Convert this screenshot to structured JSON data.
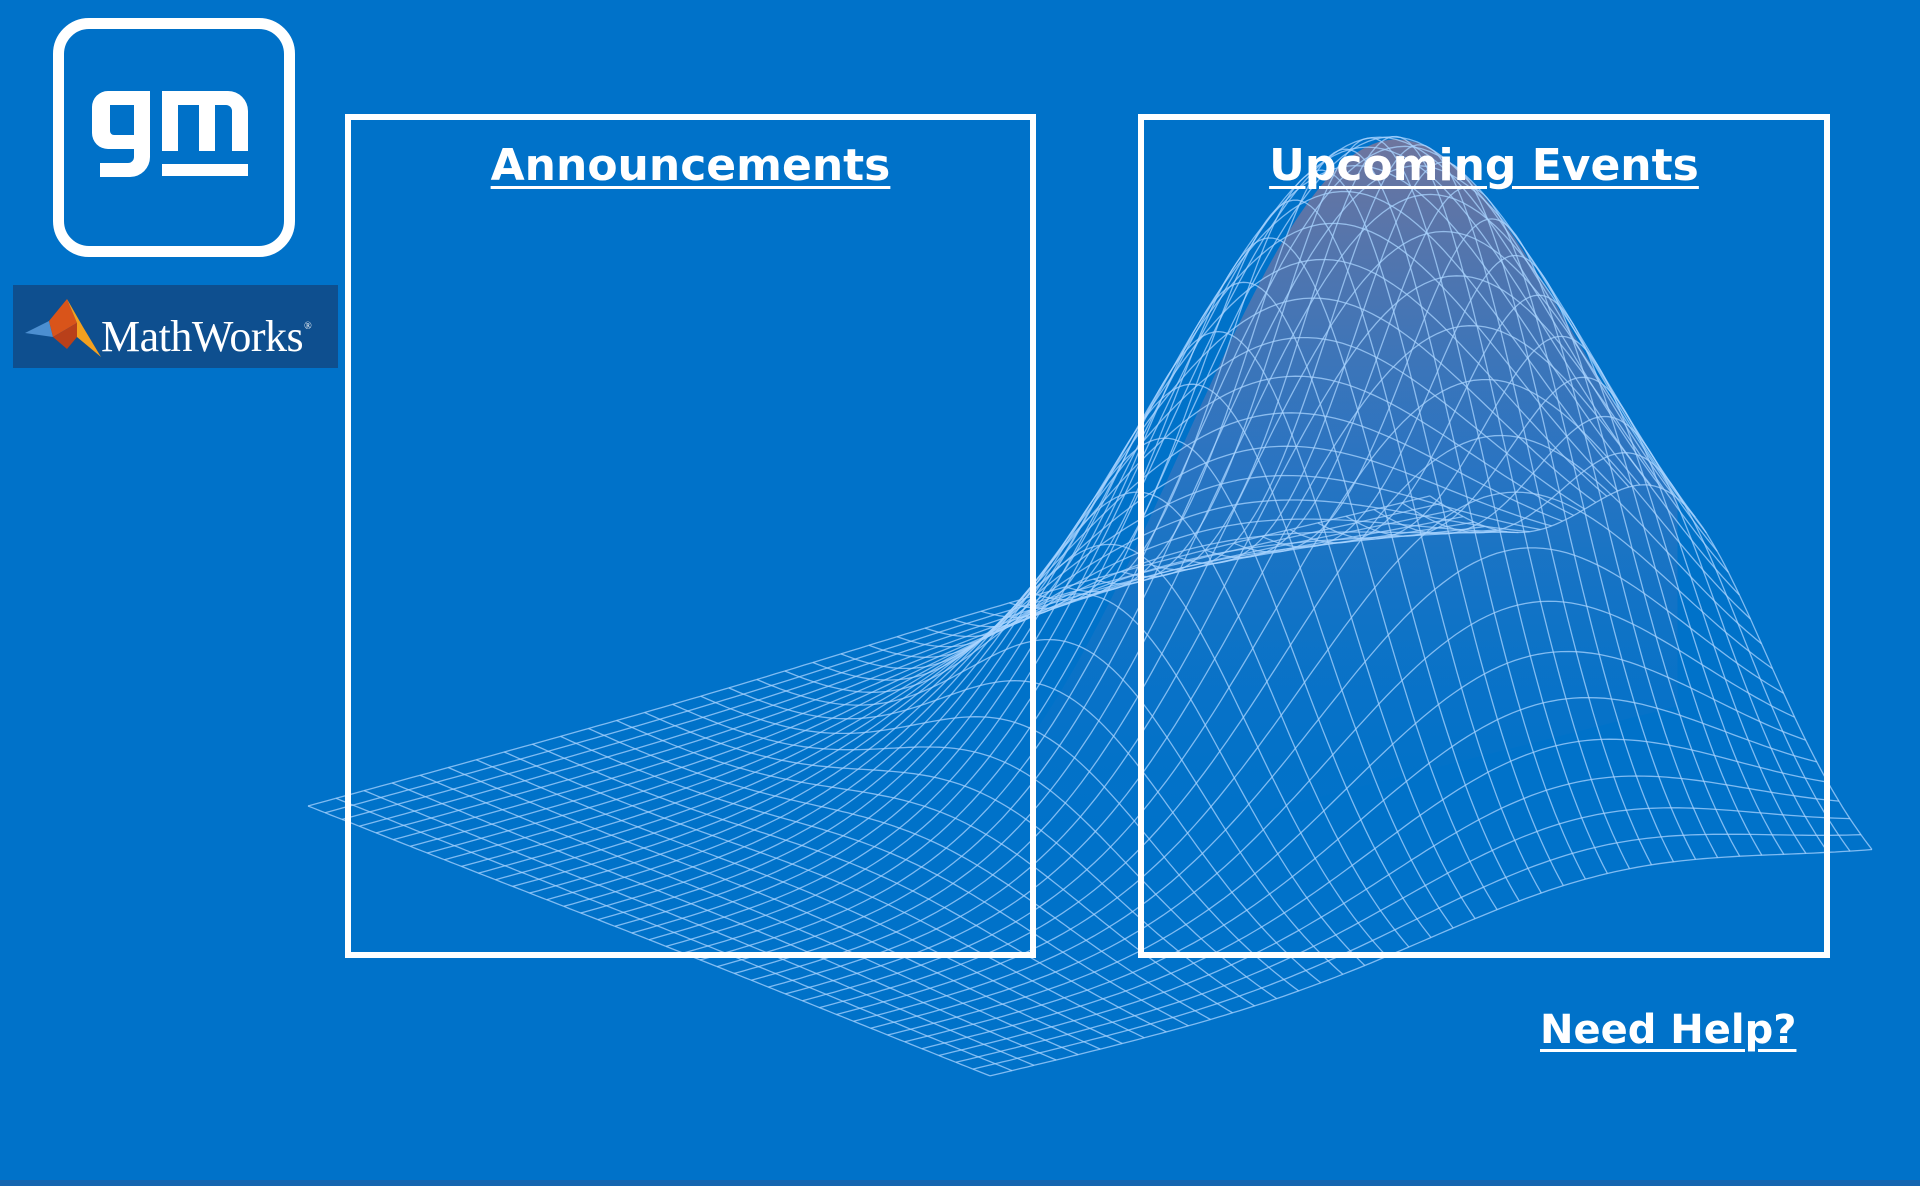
{
  "brand": {
    "gm_logo_text": "gm",
    "mathworks_text": "MathWorks",
    "mathworks_mark": "®"
  },
  "panels": {
    "announcements": {
      "title": "Announcements"
    },
    "events": {
      "title": "Upcoming Events"
    }
  },
  "help": {
    "label": "Need Help?"
  },
  "colors": {
    "background": "#0072c9",
    "panel_border": "#ffffff",
    "mathworks_bg": "#0e4f8f",
    "mesh_line": "#a9d4ff",
    "surface_peak": "#c8787a"
  },
  "decoration": {
    "icon_names": [
      "gm-logo-icon",
      "mathworks-membrane-icon"
    ],
    "background_graphic": "gaussian-surface-mesh"
  }
}
